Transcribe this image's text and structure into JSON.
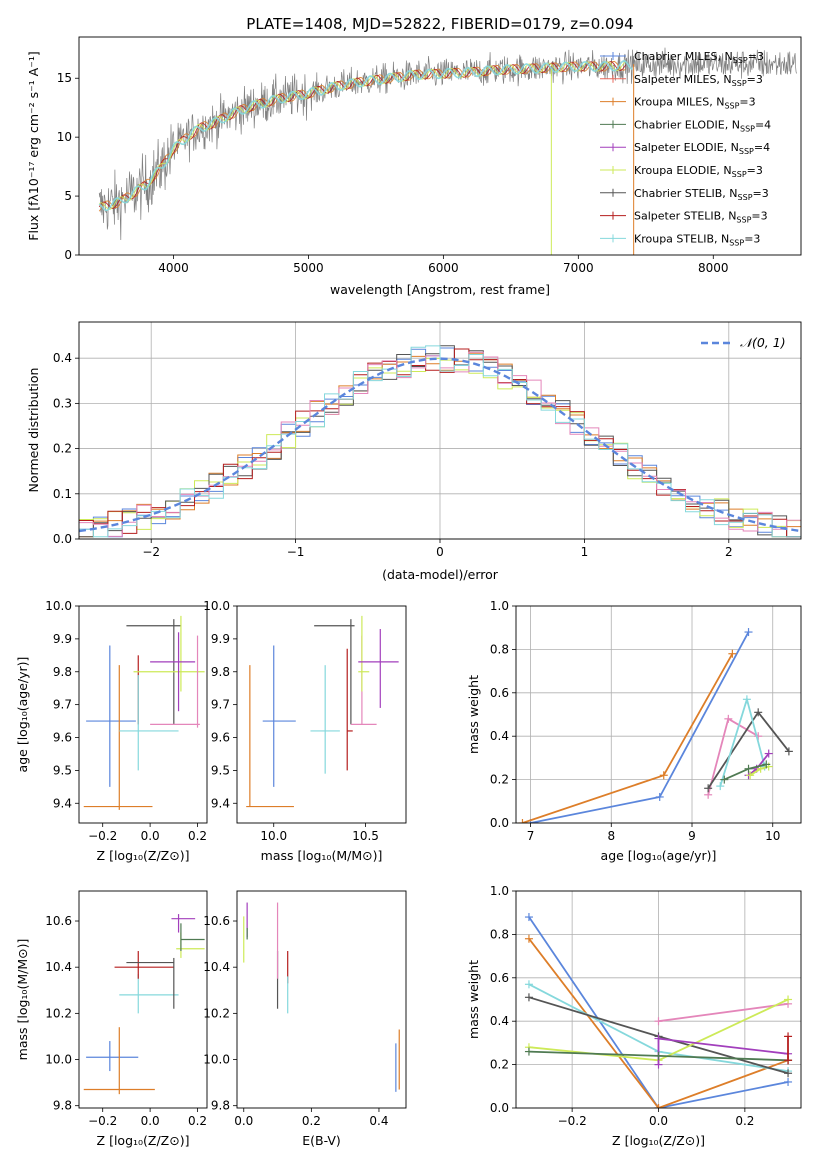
{
  "colors": {
    "chabrier_miles": "#5b86dc",
    "salpeter_miles": "#e8695c",
    "kroupa_miles": "#dd7e29",
    "chabrier_elodie": "#4f7a52",
    "salpeter_elodie": "#a23fbc",
    "kroupa_elodie": "#cdea58",
    "chabrier_stelib": "#555555",
    "salpeter_stelib": "#b51e1e",
    "kroupa_stelib": "#85d8dc",
    "pink": "#e486ba",
    "gray_spectrum": "#808080"
  },
  "chart_data": [
    {
      "id": "spectrum",
      "type": "line",
      "title": "PLATE=1408, MJD=52822, FIBERID=0179, z=0.094",
      "xlabel": "wavelength [Angstrom, rest frame]",
      "ylabel": "Flux [f$_\\lambda$10$^{-17}$ erg cm$^{-2}$ s$^{-1}$ A$^{-1}$]",
      "xlim": [
        3300,
        8650
      ],
      "ylim": [
        0,
        18.5
      ],
      "xticks": [
        4000,
        5000,
        6000,
        7000,
        8000
      ],
      "yticks": [
        0,
        5,
        10,
        15
      ],
      "grid": false,
      "legend_position": "top-right",
      "legend": [
        {
          "label": "Chabrier MILES, N",
          "sub": "SSP",
          "tail": "=3",
          "color": "chabrier_miles"
        },
        {
          "label": "Salpeter MILES, N",
          "sub": "SSP",
          "tail": "=3",
          "color": "salpeter_miles"
        },
        {
          "label": "Kroupa MILES, N",
          "sub": "SSP",
          "tail": "=3",
          "color": "kroupa_miles"
        },
        {
          "label": "Chabrier ELODIE, N",
          "sub": "SSP",
          "tail": "=4",
          "color": "chabrier_elodie"
        },
        {
          "label": "Salpeter ELODIE, N",
          "sub": "SSP",
          "tail": "=4",
          "color": "salpeter_elodie"
        },
        {
          "label": "Kroupa ELODIE, N",
          "sub": "SSP",
          "tail": "=3",
          "color": "kroupa_elodie"
        },
        {
          "label": "Chabrier STELIB, N",
          "sub": "SSP",
          "tail": "=3",
          "color": "chabrier_stelib"
        },
        {
          "label": "Salpeter STELIB, N",
          "sub": "SSP",
          "tail": "=3",
          "color": "salpeter_stelib"
        },
        {
          "label": "Kroupa STELIB, N",
          "sub": "SSP",
          "tail": "=3",
          "color": "kroupa_stelib"
        }
      ],
      "continuum": [
        [
          3450,
          4.0
        ],
        [
          3600,
          4.5
        ],
        [
          3700,
          5.2
        ],
        [
          3800,
          6.0
        ],
        [
          3900,
          7.3
        ],
        [
          4000,
          9.0
        ],
        [
          4100,
          10.0
        ],
        [
          4200,
          10.8
        ],
        [
          4300,
          11.2
        ],
        [
          4400,
          11.8
        ],
        [
          4500,
          12.3
        ],
        [
          4600,
          12.7
        ],
        [
          4700,
          13.0
        ],
        [
          4800,
          13.3
        ],
        [
          4900,
          13.5
        ],
        [
          5000,
          13.7
        ],
        [
          5100,
          14.0
        ],
        [
          5200,
          14.3
        ],
        [
          5300,
          14.5
        ],
        [
          5400,
          14.7
        ],
        [
          5600,
          15.0
        ],
        [
          5800,
          15.3
        ],
        [
          6000,
          15.4
        ],
        [
          6200,
          15.5
        ],
        [
          6400,
          15.7
        ],
        [
          6600,
          15.8
        ],
        [
          6800,
          15.9
        ],
        [
          7000,
          16.0
        ],
        [
          7200,
          16.0
        ],
        [
          7400,
          16.1
        ],
        [
          7600,
          16.2
        ]
      ],
      "model_color": "kroupa_stelib",
      "spectrum_color": "gray_spectrum"
    },
    {
      "id": "residuals",
      "type": "line",
      "xlabel": "(data-model)/error",
      "ylabel": "Normed distribution",
      "xlim": [
        -2.5,
        2.5
      ],
      "ylim": [
        0,
        0.48
      ],
      "xticks": [
        -2,
        -1,
        0,
        1,
        2
      ],
      "yticks": [
        0.0,
        0.1,
        0.2,
        0.3,
        0.4
      ],
      "grid": true,
      "legend_position": "top-right",
      "legend": [
        {
          "label": "𝒩(0, 1)",
          "color": "chabrier_miles",
          "dashed": true
        }
      ],
      "gaussian": {
        "mean": 0,
        "sigma": 1
      }
    },
    {
      "id": "age_vs_Z",
      "type": "scatter",
      "xlabel": "Z [log₁₀(Z/Z⊙)]",
      "ylabel": "age  [log₁₀(age/yr)]",
      "xlim": [
        -0.3,
        0.24
      ],
      "ylim": [
        9.34,
        10.0
      ],
      "xticks": [
        -0.2,
        0.0,
        0.2
      ],
      "yticks": [
        9.4,
        9.5,
        9.6,
        9.7,
        9.8,
        9.9,
        10.0
      ],
      "grid": false,
      "errorbars": [
        {
          "color": "chabrier_miles",
          "x": -0.17,
          "xerr": [
            0.1,
            0.11
          ],
          "y": 9.65,
          "yerr": [
            0.2,
            0.23
          ]
        },
        {
          "color": "kroupa_miles",
          "x": -0.13,
          "xerr": [
            0.15,
            0.14
          ],
          "y": 9.39,
          "yerr": [
            0.01,
            0.43
          ]
        },
        {
          "color": "salpeter_stelib",
          "x": -0.05,
          "xerr": [
            0,
            0
          ],
          "y": 9.74,
          "yerr": [
            0.1,
            0.11
          ]
        },
        {
          "color": "kroupa_stelib",
          "x": -0.05,
          "xerr": [
            0.08,
            0.17
          ],
          "y": 9.62,
          "yerr": [
            0.12,
            0.17
          ]
        },
        {
          "color": "chabrier_stelib",
          "x": 0.1,
          "xerr": [
            0.2,
            0.03
          ],
          "y": 9.94,
          "yerr": [
            0.3,
            0.02
          ]
        },
        {
          "color": "kroupa_elodie",
          "x": 0.13,
          "xerr": [
            0.2,
            0.1
          ],
          "y": 9.8,
          "yerr": [
            0.06,
            0.17
          ]
        },
        {
          "color": "salpeter_elodie",
          "x": 0.12,
          "xerr": [
            0.12,
            0.07
          ],
          "y": 9.83,
          "yerr": [
            0.15,
            0.09
          ]
        },
        {
          "color": "pink",
          "x": 0.2,
          "xerr": [
            0.2,
            0.01
          ],
          "y": 9.64,
          "yerr": [
            0.01,
            0.27
          ]
        }
      ]
    },
    {
      "id": "age_vs_mass",
      "type": "scatter",
      "xlabel": "mass [log₁₀(M/M⊙)]",
      "ylabel": "",
      "xlim": [
        9.8,
        10.72
      ],
      "ylim": [
        9.34,
        10.0
      ],
      "xticks": [
        10.0,
        10.5
      ],
      "yticks": [
        9.4,
        9.5,
        9.6,
        9.7,
        9.8,
        9.9,
        10.0
      ],
      "grid": false,
      "errorbars": [
        {
          "color": "chabrier_miles",
          "x": 10.0,
          "xerr": [
            0.06,
            0.12
          ],
          "y": 9.65,
          "yerr": [
            0.2,
            0.23
          ]
        },
        {
          "color": "kroupa_miles",
          "x": 9.87,
          "xerr": [
            0.02,
            0.24
          ],
          "y": 9.39,
          "yerr": [
            0.0,
            0.43
          ]
        },
        {
          "color": "kroupa_stelib",
          "x": 10.28,
          "xerr": [
            0.08,
            0.08
          ],
          "y": 9.62,
          "yerr": [
            0.13,
            0.2
          ]
        },
        {
          "color": "salpeter_stelib",
          "x": 10.4,
          "xerr": [
            0.0,
            0.03
          ],
          "y": 9.62,
          "yerr": [
            0.12,
            0.25
          ]
        },
        {
          "color": "chabrier_stelib",
          "x": 10.42,
          "xerr": [
            0.2,
            0.02
          ],
          "y": 9.94,
          "yerr": [
            0.3,
            0.02
          ]
        },
        {
          "color": "pink",
          "x": 10.48,
          "xerr": [
            0.06,
            0.08
          ],
          "y": 9.64,
          "yerr": [
            0.0,
            0.27
          ]
        },
        {
          "color": "kroupa_elodie",
          "x": 10.48,
          "xerr": [
            0.02,
            0.04
          ],
          "y": 9.8,
          "yerr": [
            0.06,
            0.17
          ]
        },
        {
          "color": "salpeter_elodie",
          "x": 10.58,
          "xerr": [
            0.12,
            0.1
          ],
          "y": 9.83,
          "yerr": [
            0.14,
            0.1
          ]
        }
      ]
    },
    {
      "id": "weight_vs_age",
      "type": "line",
      "xlabel": "age  [log₁₀(age/yr)]",
      "ylabel": "mass weight",
      "xlim": [
        6.82,
        10.35
      ],
      "ylim": [
        0,
        1.0
      ],
      "xticks": [
        7,
        8,
        9,
        10
      ],
      "yticks": [
        0.0,
        0.2,
        0.4,
        0.6,
        0.8,
        1.0
      ],
      "grid": true,
      "series": [
        {
          "color": "chabrier_miles",
          "points": [
            [
              7.0,
              0.0
            ],
            [
              8.6,
              0.12
            ],
            [
              9.7,
              0.88
            ]
          ]
        },
        {
          "color": "kroupa_miles",
          "points": [
            [
              6.9,
              0.0
            ],
            [
              8.65,
              0.22
            ],
            [
              9.5,
              0.78
            ]
          ]
        },
        {
          "color": "pink",
          "points": [
            [
              9.2,
              0.13
            ],
            [
              9.45,
              0.48
            ],
            [
              9.82,
              0.4
            ]
          ]
        },
        {
          "color": "chabrier_stelib",
          "points": [
            [
              9.2,
              0.16
            ],
            [
              9.82,
              0.51
            ],
            [
              10.2,
              0.33
            ]
          ]
        },
        {
          "color": "kroupa_stelib",
          "points": [
            [
              9.35,
              0.17
            ],
            [
              9.68,
              0.57
            ],
            [
              9.9,
              0.26
            ]
          ]
        },
        {
          "color": "salpeter_elodie",
          "points": [
            [
              9.7,
              0.22
            ],
            [
              9.8,
              0.25
            ],
            [
              9.95,
              0.32
            ]
          ]
        },
        {
          "color": "kroupa_elodie",
          "points": [
            [
              9.72,
              0.22
            ],
            [
              9.85,
              0.25
            ],
            [
              9.95,
              0.26
            ]
          ]
        },
        {
          "color": "chabrier_elodie",
          "points": [
            [
              9.4,
              0.2
            ],
            [
              9.7,
              0.25
            ],
            [
              9.92,
              0.27
            ]
          ]
        }
      ]
    },
    {
      "id": "mass_vs_Z",
      "type": "scatter",
      "xlabel": "Z [log₁₀(Z/Z⊙)]",
      "ylabel": "mass [log₁₀(M/M⊙)]",
      "xlim": [
        -0.3,
        0.24
      ],
      "ylim": [
        9.79,
        10.73
      ],
      "xticks": [
        -0.2,
        0.0,
        0.2
      ],
      "yticks": [
        9.8,
        10.0,
        10.2,
        10.4,
        10.6
      ],
      "grid": false,
      "errorbars": [
        {
          "color": "chabrier_miles",
          "x": -0.17,
          "xerr": [
            0.1,
            0.12
          ],
          "y": 10.01,
          "yerr": [
            0.06,
            0.07
          ]
        },
        {
          "color": "kroupa_miles",
          "x": -0.13,
          "xerr": [
            0.15,
            0.15
          ],
          "y": 9.87,
          "yerr": [
            0.02,
            0.27
          ]
        },
        {
          "color": "kroupa_stelib",
          "x": -0.05,
          "xerr": [
            0.08,
            0.17
          ],
          "y": 10.28,
          "yerr": [
            0.08,
            0.09
          ]
        },
        {
          "color": "salpeter_stelib",
          "x": -0.05,
          "xerr": [
            0.1,
            0.15
          ],
          "y": 10.4,
          "yerr": [
            0.05,
            0.07
          ]
        },
        {
          "color": "chabrier_stelib",
          "x": 0.1,
          "xerr": [
            0.2,
            0.0
          ],
          "y": 10.42,
          "yerr": [
            0.2,
            0.02
          ]
        },
        {
          "color": "kroupa_elodie",
          "x": 0.13,
          "xerr": [
            0.02,
            0.1
          ],
          "y": 10.48,
          "yerr": [
            0.04,
            0.07
          ]
        },
        {
          "color": "chabrier_elodie",
          "x": 0.13,
          "xerr": [
            0.0,
            0.1
          ],
          "y": 10.52,
          "yerr": [
            0.05,
            0.07
          ]
        },
        {
          "color": "salpeter_elodie",
          "x": 0.12,
          "xerr": [
            0.03,
            0.07
          ],
          "y": 10.61,
          "yerr": [
            0.06,
            0.02
          ]
        }
      ]
    },
    {
      "id": "mass_vs_ebv",
      "type": "scatter",
      "xlabel": "E(B-V)",
      "ylabel": "",
      "xlim": [
        -0.02,
        0.48
      ],
      "ylim": [
        9.79,
        10.73
      ],
      "xticks": [
        0.0,
        0.2,
        0.4
      ],
      "yticks": [
        9.8,
        10.0,
        10.2,
        10.4,
        10.6
      ],
      "grid": false,
      "errorbars": [
        {
          "color": "kroupa_elodie",
          "x": 0.0,
          "xerr": [
            0,
            0
          ],
          "y": 10.5,
          "yerr": [
            0.08,
            0.12
          ]
        },
        {
          "color": "salpeter_elodie",
          "x": 0.01,
          "xerr": [
            0,
            0
          ],
          "y": 10.61,
          "yerr": [
            0.08,
            0.07
          ]
        },
        {
          "color": "chabrier_elodie",
          "x": 0.01,
          "xerr": [
            0,
            0
          ],
          "y": 10.55,
          "yerr": [
            0.03,
            0.02
          ]
        },
        {
          "color": "chabrier_stelib",
          "x": 0.1,
          "xerr": [
            0,
            0
          ],
          "y": 10.42,
          "yerr": [
            0.2,
            0.05
          ]
        },
        {
          "color": "pink",
          "x": 0.1,
          "xerr": [
            0,
            0
          ],
          "y": 10.45,
          "yerr": [
            0.1,
            0.23
          ]
        },
        {
          "color": "salpeter_stelib",
          "x": 0.13,
          "xerr": [
            0,
            0
          ],
          "y": 10.4,
          "yerr": [
            0.07,
            0.07
          ]
        },
        {
          "color": "kroupa_stelib",
          "x": 0.13,
          "xerr": [
            0,
            0
          ],
          "y": 10.28,
          "yerr": [
            0.08,
            0.08
          ]
        },
        {
          "color": "chabrier_miles",
          "x": 0.45,
          "xerr": [
            0,
            0
          ],
          "y": 10.01,
          "yerr": [
            0.15,
            0.06
          ]
        },
        {
          "color": "kroupa_miles",
          "x": 0.46,
          "xerr": [
            0,
            0
          ],
          "y": 9.87,
          "yerr": [
            0.0,
            0.26
          ]
        }
      ]
    },
    {
      "id": "weight_vs_Z",
      "type": "line",
      "xlabel": "Z [log₁₀(Z/Z⊙)]",
      "ylabel": "mass weight",
      "xlim": [
        -0.33,
        0.33
      ],
      "ylim": [
        0,
        1.0
      ],
      "xticks": [
        -0.2,
        0.0,
        0.2
      ],
      "yticks": [
        0.0,
        0.2,
        0.4,
        0.6,
        0.8,
        1.0
      ],
      "grid": true,
      "series": [
        {
          "color": "chabrier_miles",
          "points": [
            [
              -0.3,
              0.88
            ],
            [
              0.0,
              0.0
            ],
            [
              0.3,
              0.12
            ]
          ]
        },
        {
          "color": "kroupa_miles",
          "points": [
            [
              -0.3,
              0.78
            ],
            [
              0.0,
              0.0
            ],
            [
              0.3,
              0.22
            ]
          ]
        },
        {
          "color": "kroupa_stelib",
          "points": [
            [
              -0.3,
              0.57
            ],
            [
              0.0,
              0.26
            ],
            [
              0.3,
              0.17
            ]
          ]
        },
        {
          "color": "chabrier_stelib",
          "points": [
            [
              -0.3,
              0.51
            ],
            [
              0.0,
              0.33
            ],
            [
              0.3,
              0.16
            ]
          ]
        },
        {
          "color": "pink",
          "points": [
            [
              0.0,
              0.4
            ],
            [
              0.3,
              0.48
            ]
          ]
        },
        {
          "color": "kroupa_elodie",
          "points": [
            [
              -0.3,
              0.28
            ],
            [
              0.0,
              0.22
            ],
            [
              0.3,
              0.5
            ]
          ]
        },
        {
          "color": "salpeter_elodie",
          "points": [
            [
              0.0,
              0.2
            ],
            [
              0.0,
              0.32
            ],
            [
              0.3,
              0.25
            ]
          ]
        },
        {
          "color": "chabrier_elodie",
          "points": [
            [
              -0.3,
              0.26
            ],
            [
              0.0,
              0.24
            ],
            [
              0.3,
              0.22
            ]
          ]
        },
        {
          "color": "salpeter_stelib",
          "points": [
            [
              0.3,
              0.33
            ],
            [
              0.3,
              0.22
            ]
          ]
        }
      ]
    }
  ]
}
